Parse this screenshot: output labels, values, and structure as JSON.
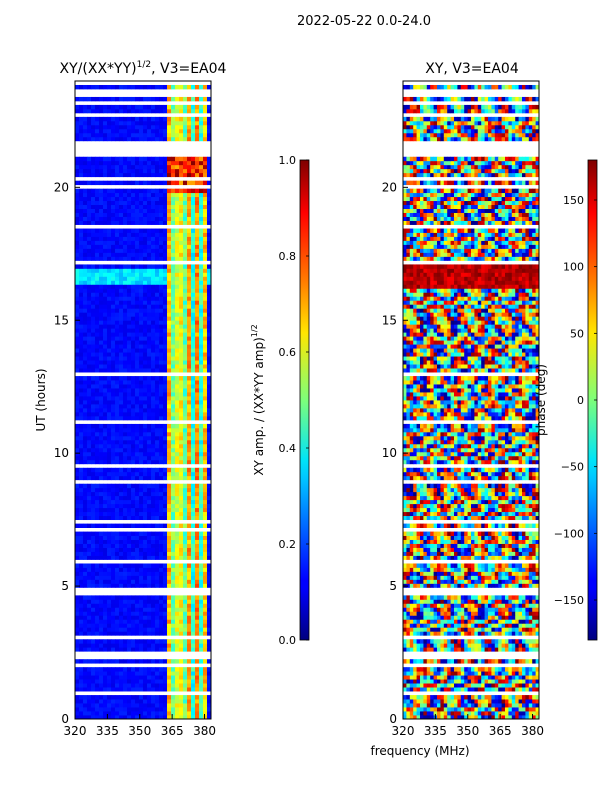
{
  "figure": {
    "suptitle": "2022-05-22 0.0-24.0",
    "shared_xlabel": "frequency (MHz)"
  },
  "chart_data": [
    {
      "type": "heatmap",
      "id": "amp",
      "title": "XY/(XX*YY)",
      "title_exp": "1/2",
      "title_suffix": ", V3=EA04",
      "xlabel": "",
      "ylabel": "UT (hours)",
      "xlim": [
        320,
        383
      ],
      "ylim": [
        0,
        24
      ],
      "xticks": [
        320,
        335,
        350,
        365,
        380
      ],
      "yticks": [
        0,
        5,
        10,
        15,
        20
      ],
      "colorbar": {
        "label": "XY amp. / (XX*YY amp)",
        "label_exp": "1/2",
        "range": [
          0.0,
          1.0
        ],
        "ticks": [
          0.0,
          0.2,
          0.4,
          0.6,
          0.8,
          1.0
        ],
        "tick_labels": [
          "0.0",
          "0.2",
          "0.4",
          "0.6",
          "0.8",
          "1.0"
        ]
      },
      "colormap": "jet"
    },
    {
      "type": "heatmap",
      "id": "phase",
      "title": "XY, V3=EA04",
      "xlabel": "frequency (MHz)",
      "ylabel": "",
      "xlim": [
        320,
        383
      ],
      "ylim": [
        0,
        24
      ],
      "xticks": [
        320,
        335,
        350,
        365,
        380
      ],
      "yticks": [
        0,
        5,
        10,
        15,
        20
      ],
      "colorbar": {
        "label": "phase (deg)",
        "range": [
          -180,
          180
        ],
        "ticks": [
          -150,
          -100,
          -50,
          0,
          50,
          100,
          150
        ],
        "tick_labels": [
          "−150",
          "−100",
          "−50",
          "0",
          "50",
          "100",
          "150"
        ]
      },
      "colormap": "jet"
    }
  ]
}
